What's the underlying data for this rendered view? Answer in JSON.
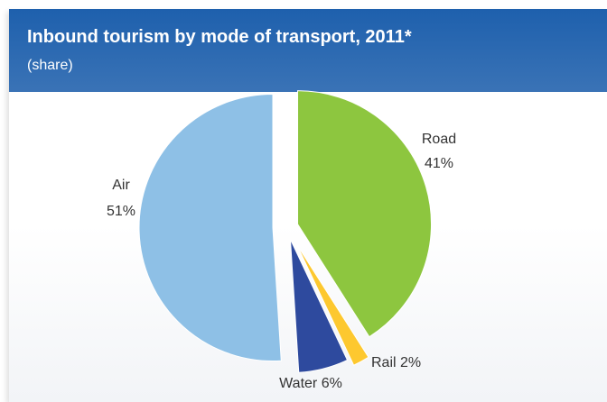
{
  "header": {
    "title": "Inbound tourism by mode of transport, 2011*",
    "subtitle": "(share)"
  },
  "chart_data": {
    "type": "pie",
    "title": "Inbound tourism by mode of transport, 2011*",
    "subtitle": "(share)",
    "slices": [
      {
        "name": "Road",
        "value": 41,
        "label": "41%",
        "color": "#8dc63f",
        "exploded": true
      },
      {
        "name": "Rail",
        "value": 2,
        "label": "Rail 2%",
        "color": "#fdc82f",
        "exploded": true
      },
      {
        "name": "Water",
        "value": 6,
        "label": "Water 6%",
        "color": "#2e4a9e",
        "exploded": true
      },
      {
        "name": "Air",
        "value": 51,
        "label": "51%",
        "color": "#8ec0e6",
        "exploded": true
      }
    ]
  }
}
